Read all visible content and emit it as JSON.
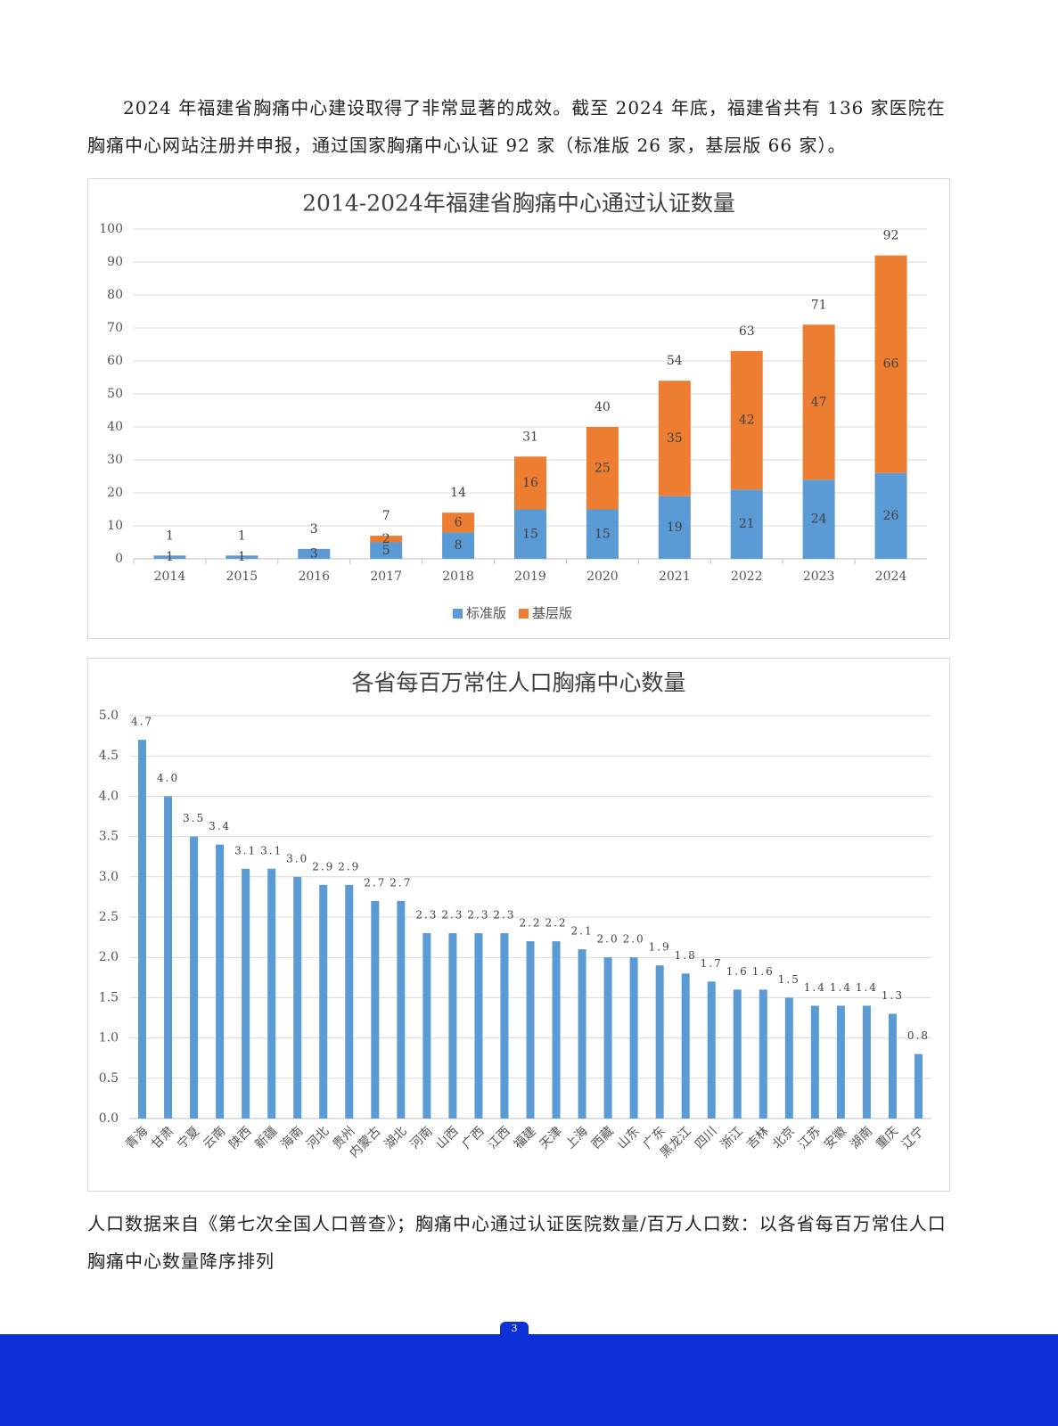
{
  "paragraph": "2024 年福建省胸痛中心建设取得了非常显著的成效。截至 2024 年底，福建省共有 136 家医院在胸痛中心网站注册并申报，通过国家胸痛中心认证 92 家（标准版 26 家，基层版 66 家）。",
  "chart_data": [
    {
      "type": "bar",
      "stacked": true,
      "title": "2014-2024年福建省胸痛中心通过认证数量",
      "categories": [
        "2014",
        "2015",
        "2016",
        "2017",
        "2018",
        "2019",
        "2020",
        "2021",
        "2022",
        "2023",
        "2024"
      ],
      "series": [
        {
          "name": "标准版",
          "color": "#5b9bd5",
          "values": [
            1,
            1,
            3,
            5,
            8,
            15,
            15,
            19,
            21,
            24,
            26
          ]
        },
        {
          "name": "基层版",
          "color": "#ed7d31",
          "values": [
            0,
            0,
            0,
            2,
            6,
            16,
            25,
            35,
            42,
            47,
            66
          ]
        }
      ],
      "totals": [
        1,
        1,
        3,
        7,
        14,
        31,
        40,
        54,
        63,
        71,
        92
      ],
      "ylim": [
        0,
        100
      ],
      "yticks": [
        0,
        10,
        20,
        30,
        40,
        50,
        60,
        70,
        80,
        90,
        100
      ],
      "grid": true,
      "legend": "bottom"
    },
    {
      "type": "bar",
      "title": "各省每百万常住人口胸痛中心数量",
      "color": "#5b9bd5",
      "categories": [
        "青海",
        "甘肃",
        "宁夏",
        "云南",
        "陕西",
        "新疆",
        "海南",
        "河北",
        "贵州",
        "内蒙古",
        "湖北",
        "河南",
        "山西",
        "广西",
        "江西",
        "福建",
        "天津",
        "上海",
        "西藏",
        "山东",
        "广东",
        "黑龙江",
        "四川",
        "浙江",
        "吉林",
        "北京",
        "江苏",
        "安徽",
        "湖南",
        "重庆",
        "辽宁"
      ],
      "values": [
        4.7,
        4.0,
        3.5,
        3.4,
        3.1,
        3.1,
        3.0,
        2.9,
        2.9,
        2.7,
        2.7,
        2.3,
        2.3,
        2.3,
        2.3,
        2.2,
        2.2,
        2.1,
        2.0,
        2.0,
        1.9,
        1.8,
        1.7,
        1.6,
        1.6,
        1.5,
        1.4,
        1.4,
        1.4,
        1.3,
        0.8
      ],
      "value_labels": [
        "4.7",
        "4.0",
        "3.5",
        "3.4",
        "3.1",
        "3.1",
        "3.0",
        "2.9",
        "2.9",
        "2.7",
        "2.7",
        "2.3",
        "2.3",
        "2.3",
        "2.3",
        "2.2",
        "2.2",
        "2.1",
        "2.0",
        "2.0",
        "1.9",
        "1.8",
        "1.7",
        "1.6",
        "1.6",
        "1.5",
        "1.4",
        "1.4",
        "1.4",
        "1.3",
        "0.8"
      ],
      "ylim": [
        0,
        5
      ],
      "yticks": [
        {
          "value": 0,
          "label": "0.0"
        },
        0.5,
        {
          "value": 1,
          "label": "1.0"
        },
        1.5,
        {
          "value": 2,
          "label": "2.0"
        },
        2.5,
        {
          "value": 3,
          "label": "3.0"
        },
        3.5,
        {
          "value": 4,
          "label": "4.0"
        },
        4.5,
        {
          "value": 5,
          "label": "5.0"
        }
      ],
      "grid": true
    }
  ],
  "note": "人口数据来自《第七次全国人口普查》；胸痛中心通过认证医院数量/百万人口数：以各省每百万常住人口胸痛中心数量降序排列",
  "page_number": "3"
}
